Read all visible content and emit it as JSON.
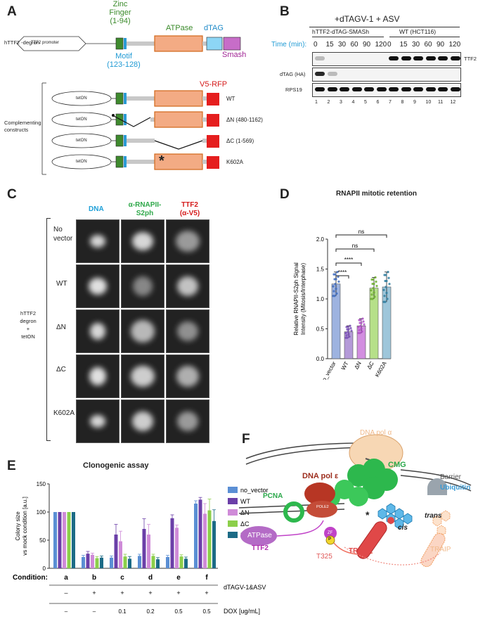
{
  "panel_a": {
    "letter": "A",
    "degron_label": "hTTF2 -degron",
    "promoter": "TTF2 promoter",
    "zinc_finger": "Zinc\nFinger\n(1-94)",
    "zf_line1": "Zinc",
    "zf_line2": "Finger",
    "zf_line3": "(1-94)",
    "atpase": "ATPase",
    "dtag": "dTAG",
    "smash": "Smash",
    "motif_line1": "Motif",
    "motif_line2": "(123-128)",
    "v5rfp": "V5-RFP",
    "complementing": "Complementing\nconstructs",
    "comp_line1": "Complementing",
    "comp_line2": "constructs",
    "teton": "tetON",
    "constructs": [
      "WT",
      "ΔN (480-1162)",
      "ΔC (1-569)",
      "K602A"
    ],
    "star": "*"
  },
  "panel_b": {
    "letter": "B",
    "treatment": "+dTAGV-1 + ASV",
    "group1": "hTTF2-dTAG-SMASh",
    "group2": "WT (HCT116)",
    "time_label": "Time (min):",
    "times": [
      "0",
      "15",
      "30",
      "60",
      "90",
      "120",
      "0",
      "15",
      "30",
      "60",
      "90",
      "120"
    ],
    "rows": [
      "TTF2",
      "dTAG (HA)",
      "RPS19"
    ],
    "lanes": [
      "1",
      "2",
      "3",
      "4",
      "5",
      "6",
      "7",
      "8",
      "9",
      "10",
      "11",
      "12"
    ]
  },
  "panel_c": {
    "letter": "C",
    "col_headers": [
      "DNA",
      "α-RNAPII-\nS2ph",
      "TTF2\n(α-V5)"
    ],
    "col1": "DNA",
    "col2_l1": "α-RNAPII-",
    "col2_l2": "S2ph",
    "col3_l1": "TTF2",
    "col3_l2": "(α-V5)",
    "rows": [
      "No\nvector",
      "WT",
      "ΔN",
      "ΔC",
      "K602A"
    ],
    "row_l1_no": "No",
    "row_l2_no": "vector",
    "row_wt": "WT",
    "row_dn": "ΔN",
    "row_dc": "ΔC",
    "row_k": "K602A",
    "side_l1": "hTTF2",
    "side_l2": "degron",
    "side_l3": "+",
    "side_l4": "tetON"
  },
  "panel_d": {
    "letter": "D",
    "title": "RNAPII mitotic retention",
    "ylabel_l1": "Relative RNAPII-S2ph Signal",
    "ylabel_l2": "Intensity (Mitosis/Interphase)",
    "sig": [
      "ns",
      "ns",
      "****",
      "****"
    ],
    "colors": {
      "no_vector": "#9db3e0",
      "WT": "#b49ad8",
      "dN": "#d28ee0",
      "dC": "#b6e089",
      "K602A": "#9ec6da"
    }
  },
  "panel_e": {
    "letter": "E",
    "title": "Clonogenic assay",
    "ylabel_l1": "Colony size",
    "ylabel_l2": "vs mock condition [a.u.]",
    "condition_label": "Condition:",
    "conditions": [
      "a",
      "b",
      "c",
      "d",
      "e",
      "f"
    ],
    "dtag_label": "dTAGV-1&ASV",
    "dtag_row": [
      "–",
      "+",
      "+",
      "+",
      "+",
      "+"
    ],
    "dox_label": "DOX [ug/mL]",
    "dox_row": [
      "–",
      "–",
      "0.1",
      "0.2",
      "0.5",
      "0.5"
    ]
  },
  "panel_f": {
    "letter": "F",
    "dna_pol_a": "DNA pol α",
    "cmg": "CMG",
    "dna_pol_e": "DNA pol ε",
    "barrier": "Barrier",
    "ubiquitin": "Ubiquitin",
    "pcna": "PCNA",
    "pole2": "POLE2",
    "atpase": "ATPase",
    "ttf2": "TTF2",
    "zf": "ZF",
    "p": "P",
    "t325": "T325",
    "traip": "TRAIP",
    "traip2": "TRAIP",
    "cis": "cis",
    "trans": "trans",
    "star": "*"
  },
  "chart_data": [
    {
      "type": "bar",
      "title": "RNAPII mitotic retention",
      "categories": [
        "no_vector",
        "WT",
        "ΔN",
        "ΔC",
        "K602A"
      ],
      "values": [
        1.25,
        0.45,
        0.55,
        1.18,
        1.2
      ],
      "errors": [
        0.2,
        0.1,
        0.12,
        0.18,
        0.25
      ],
      "xlabel": "",
      "ylabel": "Relative RNAPII-S2ph Signal Intensity (Mitosis/Interphase)",
      "ylim": [
        0,
        2.0
      ],
      "yticks": [
        "0.0",
        "0.5",
        "1.0",
        "1.5",
        "2.0"
      ],
      "comparisons": [
        {
          "from": "no_vector",
          "to": "WT",
          "label": "****"
        },
        {
          "from": "no_vector",
          "to": "ΔN",
          "label": "****"
        },
        {
          "from": "no_vector",
          "to": "ΔC",
          "label": "ns"
        },
        {
          "from": "no_vector",
          "to": "K602A",
          "label": "ns"
        }
      ]
    },
    {
      "type": "bar",
      "title": "Clonogenic assay",
      "categories": [
        "a",
        "b",
        "c",
        "d",
        "e",
        "f"
      ],
      "series": [
        {
          "name": "no_vector",
          "values": [
            100,
            20,
            19,
            22,
            20,
            115
          ],
          "errors": [
            0,
            3,
            3,
            3,
            3,
            5
          ],
          "color": "#5b8fd4"
        },
        {
          "name": "WT",
          "values": [
            100,
            26,
            60,
            70,
            89,
            122
          ],
          "errors": [
            0,
            4,
            18,
            18,
            6,
            4
          ],
          "color": "#6b3fa8"
        },
        {
          "name": "ΔN",
          "values": [
            100,
            24,
            48,
            60,
            72,
            97
          ],
          "errors": [
            0,
            3,
            18,
            18,
            5,
            18
          ],
          "color": "#cf8bd8"
        },
        {
          "name": "ΔC",
          "values": [
            100,
            18,
            21,
            22,
            21,
            103
          ],
          "errors": [
            0,
            3,
            4,
            3,
            3,
            20
          ],
          "color": "#8ccf4a"
        },
        {
          "name": "K602A",
          "values": [
            100,
            19,
            17,
            16,
            17,
            84
          ],
          "errors": [
            0,
            3,
            4,
            3,
            3,
            20
          ],
          "color": "#1c6b86"
        }
      ],
      "xlabel": "",
      "ylabel": "Colony size vs mock condition [a.u.]",
      "ylim": [
        0,
        150
      ],
      "yticks": [
        "0",
        "50",
        "100",
        "150"
      ],
      "legend": "right"
    }
  ]
}
